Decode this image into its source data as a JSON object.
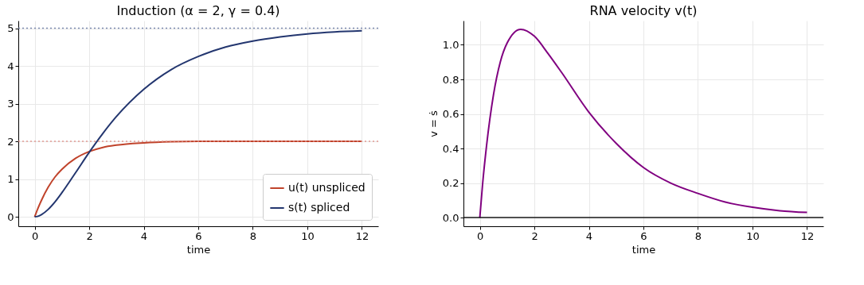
{
  "chart_data": [
    {
      "type": "line",
      "title": "Induction (α = 2, γ = 0.4)",
      "xlabel": "time",
      "x": [
        0,
        0.1,
        0.25,
        0.5,
        0.75,
        1,
        1.5,
        2,
        2.5,
        3,
        4,
        5,
        6,
        7,
        8,
        9,
        10,
        11,
        12
      ],
      "series": [
        {
          "name": "u(t) unspliced",
          "color": "#c0432b",
          "values": [
            0,
            0.19,
            0.44,
            0.79,
            1.06,
            1.26,
            1.55,
            1.73,
            1.84,
            1.9,
            1.96,
            1.99,
            2.0,
            2.0,
            2.0,
            2.0,
            2.0,
            2.0,
            2.0
          ]
        },
        {
          "name": "s(t) spliced",
          "color": "#23366f",
          "values": [
            0,
            0.01,
            0.06,
            0.2,
            0.4,
            0.64,
            1.17,
            1.71,
            2.21,
            2.66,
            3.38,
            3.9,
            4.25,
            4.5,
            4.66,
            4.77,
            4.85,
            4.9,
            4.93
          ]
        }
      ],
      "xlim": [
        -0.6,
        12.6
      ],
      "xticks": [
        0,
        2,
        4,
        6,
        8,
        10,
        12
      ],
      "ylim": [
        -0.25,
        5.2
      ],
      "yticks": [
        0,
        1,
        2,
        3,
        4,
        5
      ],
      "grid": true,
      "legend": "bottom right",
      "ref_lines": [
        {
          "axis": "y",
          "value": 5,
          "color": "#7080a8",
          "line_style": "dotted"
        },
        {
          "axis": "y",
          "value": 2,
          "color": "#e0918a",
          "line_style": "dotted"
        }
      ]
    },
    {
      "type": "line",
      "title": "RNA velocity v(t)",
      "xlabel": "time",
      "ylabel": "v = ṡ",
      "x": [
        0,
        0.1,
        0.25,
        0.5,
        0.75,
        1,
        1.5,
        2,
        2.5,
        3,
        4,
        5,
        6,
        7,
        8,
        9,
        10,
        11,
        12
      ],
      "series": [
        {
          "color": "#800080",
          "values": [
            0,
            0.19,
            0.42,
            0.71,
            0.9,
            1.01,
            1.09,
            1.05,
            0.95,
            0.84,
            0.61,
            0.43,
            0.29,
            0.2,
            0.14,
            0.09,
            0.06,
            0.04,
            0.03
          ]
        }
      ],
      "xlim": [
        -0.6,
        12.6
      ],
      "xticks": [
        0,
        2,
        4,
        6,
        8,
        10,
        12
      ],
      "ylim": [
        -0.05,
        1.14
      ],
      "yticks": [
        {
          "value": 0,
          "label": "0.0"
        },
        {
          "value": 0.2,
          "label": "0.2"
        },
        {
          "value": 0.4,
          "label": "0.4"
        },
        {
          "value": 0.6,
          "label": "0.6"
        },
        {
          "value": 0.8,
          "label": "0.8"
        },
        {
          "value": 1,
          "label": "1.0"
        }
      ],
      "grid": true,
      "ref_lines": [
        {
          "axis": "y",
          "value": 0,
          "color": "#000000",
          "line_style": "solid"
        }
      ]
    }
  ]
}
